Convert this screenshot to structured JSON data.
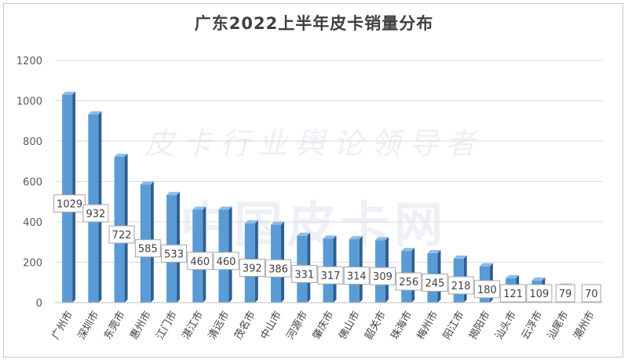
{
  "chart_data": {
    "type": "bar",
    "title": "广东2022上半年皮卡销量分布",
    "categories": [
      "广州市",
      "深圳市",
      "东莞市",
      "惠州市",
      "江门市",
      "湛江市",
      "清远市",
      "茂名市",
      "中山市",
      "河源市",
      "肇庆市",
      "佛山市",
      "韶关市",
      "珠海市",
      "梅州市",
      "阳江市",
      "揭阳市",
      "汕头市",
      "云浮市",
      "汕尾市",
      "潮州市"
    ],
    "values": [
      1029,
      932,
      722,
      585,
      533,
      460,
      460,
      392,
      386,
      331,
      317,
      314,
      309,
      256,
      245,
      218,
      180,
      121,
      109,
      79,
      70
    ],
    "ylim": [
      0,
      1200
    ],
    "yticks": [
      0,
      200,
      400,
      600,
      800,
      1000,
      1200
    ],
    "grid": true,
    "legend": "none",
    "colors": {
      "bar_front": "#5b9bd5",
      "bar_side": "#2e5f91",
      "bar_top": "#8fbbe6",
      "label_border": "#a6a6a6"
    }
  },
  "watermark": {
    "line1": "皮卡行业舆论领导者",
    "line2": "中国皮卡网"
  }
}
